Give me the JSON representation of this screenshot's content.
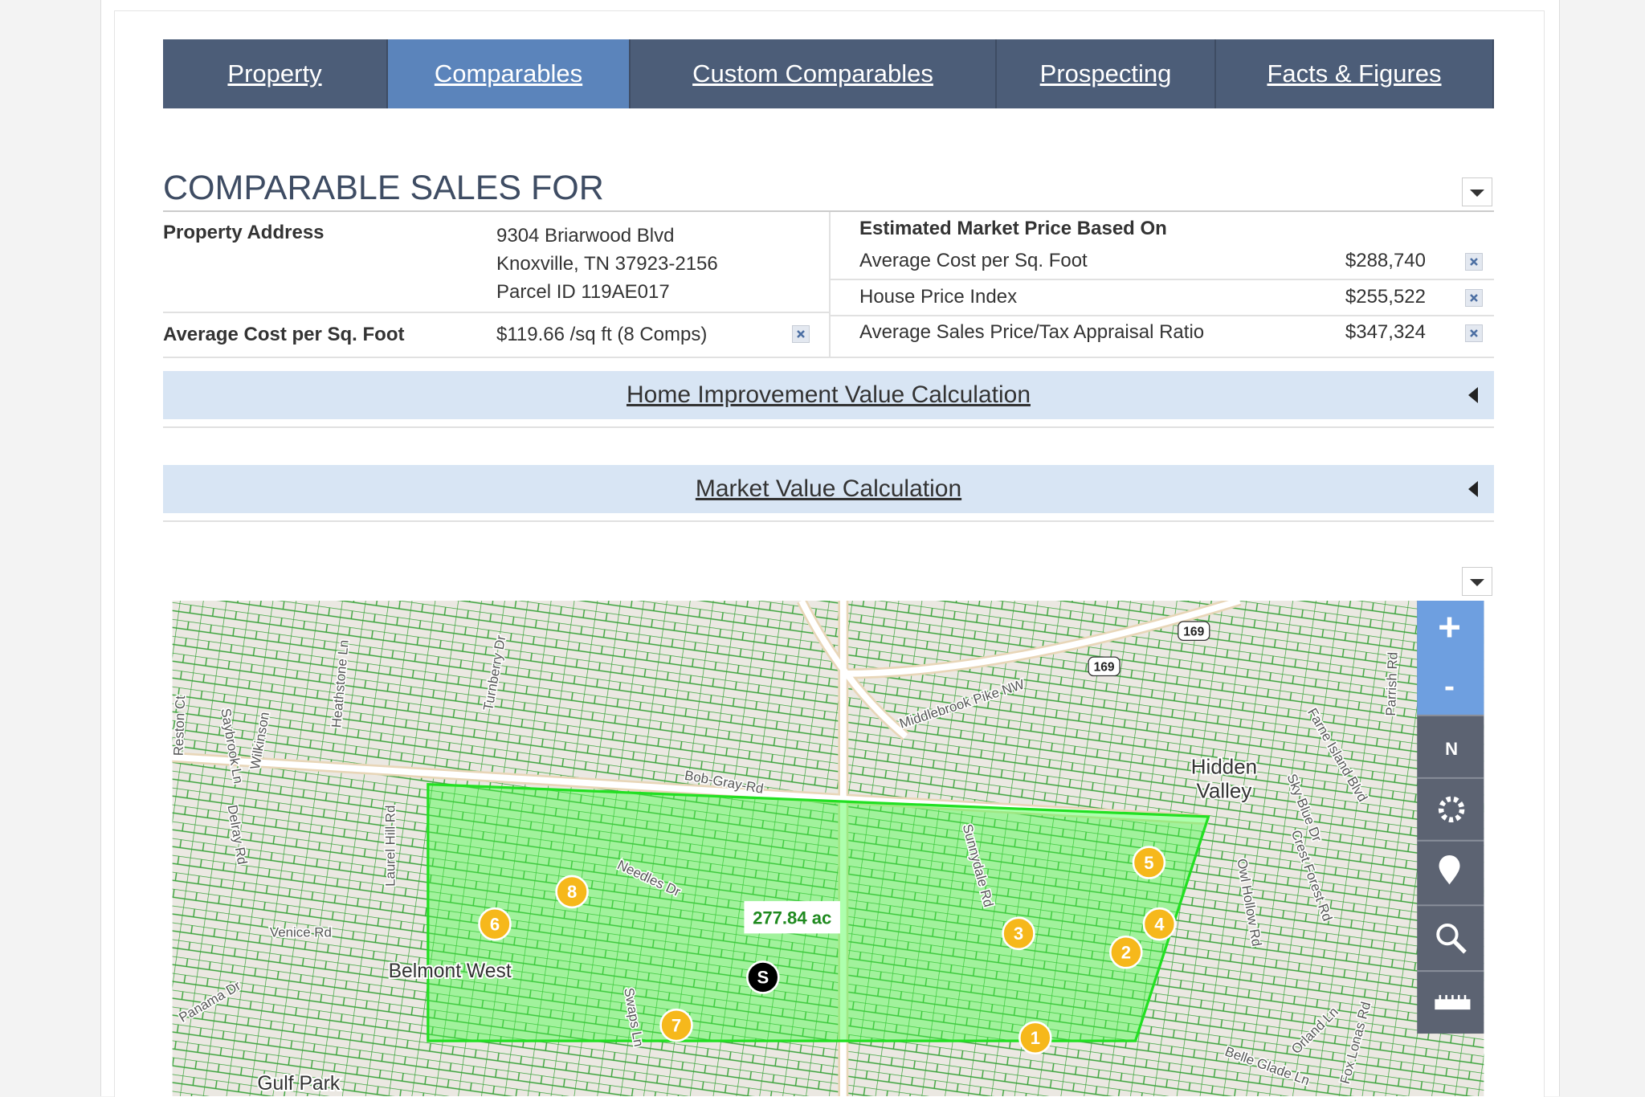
{
  "tabs": [
    "Property",
    "Comparables",
    "Custom Comparables",
    "Prospecting",
    "Facts & Figures"
  ],
  "active_tab": 1,
  "section_title": "COMPARABLE SALES FOR",
  "property": {
    "address_label": "Property Address",
    "address_lines": [
      "9304 Briarwood Blvd",
      "Knoxville, TN 37923-2156",
      "Parcel ID 119AE017"
    ],
    "avg_label": "Average Cost per Sq. Foot",
    "avg_value": "$119.66 /sq ft (8 Comps)"
  },
  "estimate": {
    "header": "Estimated Market Price Based On",
    "rows": [
      [
        "Average Cost per Sq. Foot",
        "$288,740"
      ],
      [
        "House Price Index",
        "$255,522"
      ],
      [
        "Average Sales Price/Tax Appraisal Ratio",
        "$347,324"
      ]
    ]
  },
  "accordions": [
    "Home Improvement Value Calculation",
    "Market Value Calculation"
  ],
  "map": {
    "area_label": "277.84 ac",
    "markers": [
      "1",
      "2",
      "3",
      "4",
      "5",
      "6",
      "7",
      "8",
      "S"
    ],
    "route_shields": [
      "169",
      "169"
    ],
    "places": [
      "Hidden",
      "Valley",
      "Belmont West",
      "Gulf Park"
    ],
    "streets": [
      "Bob-Gray-Rd",
      "Middlebrook Pike NW",
      "Needles Dr",
      "Sunnydale Rd",
      "Venice Rd",
      "Laurel Hill Rd",
      "Swaps Ln",
      "Panama Dr",
      "Delray Rd",
      "Wilkinson",
      "Heathstone Ln",
      "Turnberry Dr",
      "Owl Hollow Rd",
      "Crest Forest Rd",
      "Sky Blue Dr",
      "Farne Island Blvd",
      "Parrish Rd",
      "Belle Glade Ln",
      "Orland Ln",
      "Fox Lonas Rd",
      "Reston Ct",
      "Saybrook Ln"
    ],
    "zoom": [
      "+",
      "-"
    ],
    "compass": "N"
  }
}
